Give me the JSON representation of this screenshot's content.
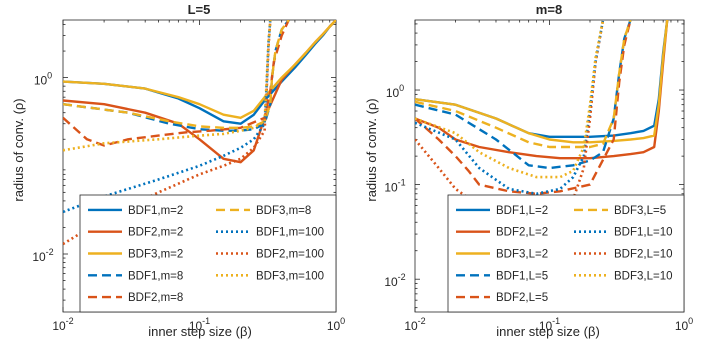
{
  "colors": {
    "BDF1": "#0072BD",
    "BDF2": "#D95319",
    "BDF3": "#EDB120",
    "axis": "#262626"
  },
  "chart_data": [
    {
      "type": "line",
      "title": "L=5",
      "xlabel": "inner step size (β)",
      "ylabel": "radius of conv. (ρ)",
      "xscale": "log",
      "yscale": "log",
      "xlim": [
        0.01,
        1
      ],
      "ylim": [
        0.0022,
        4.5
      ],
      "xticks": [
        {
          "v": 0.01,
          "label": "10",
          "exp": "-2"
        },
        {
          "v": 0.1,
          "label": "10",
          "exp": "-1"
        },
        {
          "v": 1,
          "label": "10",
          "exp": "0"
        }
      ],
      "yticks": [
        {
          "v": 1,
          "label": "10",
          "exp": "0"
        },
        {
          "v": 0.01,
          "label": "10",
          "exp": "-2"
        }
      ],
      "legend": {
        "location": "bottom-right",
        "columns": 2
      },
      "series": [
        {
          "name": "BDF1,m=2",
          "method": "BDF1",
          "style": "solid",
          "x": [
            0.01,
            0.02,
            0.04,
            0.07,
            0.1,
            0.15,
            0.2,
            0.25,
            0.3,
            0.4,
            0.5,
            0.6,
            0.7,
            0.8,
            0.9,
            1.0
          ],
          "y": [
            0.9,
            0.85,
            0.75,
            0.58,
            0.45,
            0.32,
            0.3,
            0.38,
            0.55,
            0.9,
            1.3,
            1.8,
            2.4,
            3.0,
            3.8,
            4.5
          ]
        },
        {
          "name": "BDF2,m=2",
          "method": "BDF2",
          "style": "solid",
          "x": [
            0.01,
            0.02,
            0.04,
            0.07,
            0.1,
            0.15,
            0.2,
            0.25,
            0.3,
            0.4,
            0.5,
            0.6,
            0.7,
            0.8,
            0.9,
            1.0
          ],
          "y": [
            0.55,
            0.5,
            0.4,
            0.3,
            0.2,
            0.12,
            0.11,
            0.15,
            0.35,
            0.95,
            1.4,
            1.9,
            2.5,
            3.1,
            3.8,
            4.5
          ]
        },
        {
          "name": "BDF3,m=2",
          "method": "BDF3",
          "style": "solid",
          "x": [
            0.01,
            0.02,
            0.04,
            0.07,
            0.1,
            0.15,
            0.2,
            0.25,
            0.3,
            0.4,
            0.5,
            0.6,
            0.7,
            0.8,
            0.9,
            1.0
          ],
          "y": [
            0.9,
            0.85,
            0.75,
            0.6,
            0.5,
            0.38,
            0.35,
            0.42,
            0.6,
            1.0,
            1.4,
            1.9,
            2.5,
            3.1,
            3.8,
            4.5
          ]
        },
        {
          "name": "BDF1,m=8",
          "method": "BDF1",
          "style": "dash",
          "x": [
            0.01,
            0.03,
            0.06,
            0.1,
            0.15,
            0.2,
            0.25,
            0.3,
            0.33,
            0.34,
            0.36,
            0.4,
            0.45
          ],
          "y": [
            0.5,
            0.4,
            0.3,
            0.26,
            0.25,
            0.25,
            0.26,
            0.3,
            0.5,
            1.0,
            2.0,
            3.5,
            4.5
          ]
        },
        {
          "name": "BDF2,m=8",
          "method": "BDF2",
          "style": "dash",
          "x": [
            0.01,
            0.015,
            0.02,
            0.03,
            0.05,
            0.08,
            0.12,
            0.2,
            0.3,
            0.33,
            0.35,
            0.4,
            0.45
          ],
          "y": [
            0.35,
            0.2,
            0.17,
            0.2,
            0.22,
            0.24,
            0.25,
            0.27,
            0.35,
            0.7,
            1.5,
            3.0,
            4.5
          ]
        },
        {
          "name": "BDF3,m=8",
          "method": "BDF3",
          "style": "dash",
          "x": [
            0.01,
            0.03,
            0.06,
            0.1,
            0.15,
            0.2,
            0.25,
            0.3,
            0.33,
            0.34,
            0.36,
            0.4,
            0.45
          ],
          "y": [
            0.5,
            0.4,
            0.32,
            0.28,
            0.27,
            0.27,
            0.28,
            0.32,
            0.5,
            1.0,
            2.0,
            3.5,
            4.5
          ]
        },
        {
          "name": "BDF1,m=100",
          "method": "BDF1",
          "style": "dot",
          "x": [
            0.01,
            0.02,
            0.05,
            0.1,
            0.15,
            0.2,
            0.25,
            0.3,
            0.31,
            0.32,
            0.33
          ],
          "y": [
            0.03,
            0.045,
            0.07,
            0.1,
            0.13,
            0.16,
            0.2,
            0.3,
            0.8,
            2.5,
            4.5
          ]
        },
        {
          "name": "BDF2,m=100",
          "method": "BDF2",
          "style": "dot",
          "x": [
            0.01,
            0.02,
            0.05,
            0.1,
            0.15,
            0.2,
            0.25,
            0.3,
            0.31,
            0.32,
            0.33
          ],
          "y": [
            0.013,
            0.025,
            0.05,
            0.08,
            0.1,
            0.12,
            0.16,
            0.25,
            0.7,
            2.2,
            4.5
          ]
        },
        {
          "name": "BDF3,m=100",
          "method": "BDF3",
          "style": "dot",
          "x": [
            0.01,
            0.02,
            0.05,
            0.1,
            0.15,
            0.2,
            0.25,
            0.3,
            0.31,
            0.32,
            0.33
          ],
          "y": [
            0.15,
            0.18,
            0.2,
            0.22,
            0.23,
            0.25,
            0.27,
            0.32,
            0.9,
            2.5,
            4.5
          ]
        }
      ]
    },
    {
      "type": "line",
      "title": "m=8",
      "xlabel": "inner step size (β)",
      "ylabel": "radius of conv. (ρ)",
      "xscale": "log",
      "yscale": "log",
      "xlim": [
        0.01,
        1
      ],
      "ylim": [
        0.0045,
        5.5
      ],
      "xticks": [
        {
          "v": 0.01,
          "label": "10",
          "exp": "-2"
        },
        {
          "v": 0.1,
          "label": "10",
          "exp": "-1"
        },
        {
          "v": 1,
          "label": "10",
          "exp": "0"
        }
      ],
      "yticks": [
        {
          "v": 1,
          "label": "10",
          "exp": "0"
        },
        {
          "v": 0.1,
          "label": "10",
          "exp": "-1"
        },
        {
          "v": 0.01,
          "label": "10",
          "exp": "-2"
        }
      ],
      "legend": {
        "location": "bottom-right",
        "columns": 2
      },
      "series": [
        {
          "name": "BDF1,L=2",
          "method": "BDF1",
          "style": "solid",
          "x": [
            0.01,
            0.02,
            0.04,
            0.07,
            0.1,
            0.15,
            0.2,
            0.3,
            0.4,
            0.5,
            0.6,
            0.65,
            0.7,
            0.75
          ],
          "y": [
            0.8,
            0.7,
            0.5,
            0.35,
            0.32,
            0.32,
            0.32,
            0.33,
            0.35,
            0.37,
            0.42,
            0.8,
            2.5,
            5.5
          ]
        },
        {
          "name": "BDF2,L=2",
          "method": "BDF2",
          "style": "solid",
          "x": [
            0.01,
            0.015,
            0.02,
            0.03,
            0.05,
            0.08,
            0.12,
            0.2,
            0.3,
            0.4,
            0.5,
            0.6,
            0.65,
            0.7,
            0.75
          ],
          "y": [
            0.5,
            0.4,
            0.3,
            0.25,
            0.22,
            0.2,
            0.19,
            0.19,
            0.2,
            0.21,
            0.22,
            0.25,
            0.6,
            2.0,
            5.5
          ]
        },
        {
          "name": "BDF3,L=2",
          "method": "BDF3",
          "style": "solid",
          "x": [
            0.01,
            0.02,
            0.04,
            0.07,
            0.1,
            0.15,
            0.2,
            0.3,
            0.4,
            0.5,
            0.6,
            0.65,
            0.7,
            0.75
          ],
          "y": [
            0.8,
            0.7,
            0.5,
            0.35,
            0.3,
            0.28,
            0.28,
            0.29,
            0.3,
            0.31,
            0.33,
            0.7,
            2.3,
            5.5
          ]
        },
        {
          "name": "BDF1,L=5",
          "method": "BDF1",
          "style": "dash",
          "x": [
            0.01,
            0.02,
            0.04,
            0.07,
            0.1,
            0.15,
            0.2,
            0.25,
            0.3,
            0.33,
            0.36,
            0.4
          ],
          "y": [
            0.7,
            0.55,
            0.3,
            0.16,
            0.15,
            0.16,
            0.18,
            0.22,
            0.5,
            1.5,
            3.5,
            5.5
          ]
        },
        {
          "name": "BDF2,L=5",
          "method": "BDF2",
          "style": "dash",
          "x": [
            0.01,
            0.015,
            0.02,
            0.025,
            0.03,
            0.05,
            0.08,
            0.12,
            0.2,
            0.3,
            0.33,
            0.36,
            0.4
          ],
          "y": [
            0.5,
            0.3,
            0.2,
            0.14,
            0.1,
            0.085,
            0.08,
            0.085,
            0.1,
            0.3,
            1.2,
            3.0,
            5.5
          ]
        },
        {
          "name": "BDF3,L=5",
          "method": "BDF3",
          "style": "dash",
          "x": [
            0.01,
            0.02,
            0.04,
            0.07,
            0.1,
            0.15,
            0.2,
            0.25,
            0.3,
            0.33,
            0.36,
            0.4
          ],
          "y": [
            0.75,
            0.6,
            0.4,
            0.28,
            0.25,
            0.25,
            0.25,
            0.27,
            0.5,
            1.5,
            3.5,
            5.5
          ]
        },
        {
          "name": "BDF1,L=10",
          "method": "BDF1",
          "style": "dot",
          "x": [
            0.01,
            0.02,
            0.03,
            0.05,
            0.08,
            0.12,
            0.15,
            0.18,
            0.2,
            0.22,
            0.25
          ],
          "y": [
            0.45,
            0.3,
            0.15,
            0.09,
            0.08,
            0.09,
            0.12,
            0.2,
            0.6,
            2.0,
            5.5
          ]
        },
        {
          "name": "BDF2,L=10",
          "method": "BDF2",
          "style": "dot",
          "x": [
            0.01,
            0.015,
            0.02,
            0.03,
            0.05,
            0.08,
            0.12,
            0.15,
            0.18,
            0.2,
            0.22,
            0.25
          ],
          "y": [
            0.3,
            0.15,
            0.09,
            0.06,
            0.05,
            0.05,
            0.055,
            0.07,
            0.15,
            0.5,
            2.0,
            5.5
          ]
        },
        {
          "name": "BDF3,L=10",
          "method": "BDF3",
          "style": "dot",
          "x": [
            0.01,
            0.02,
            0.03,
            0.05,
            0.08,
            0.12,
            0.15,
            0.18,
            0.2,
            0.22,
            0.25
          ],
          "y": [
            0.5,
            0.35,
            0.22,
            0.15,
            0.12,
            0.12,
            0.14,
            0.25,
            0.7,
            2.2,
            5.5
          ]
        }
      ]
    }
  ]
}
